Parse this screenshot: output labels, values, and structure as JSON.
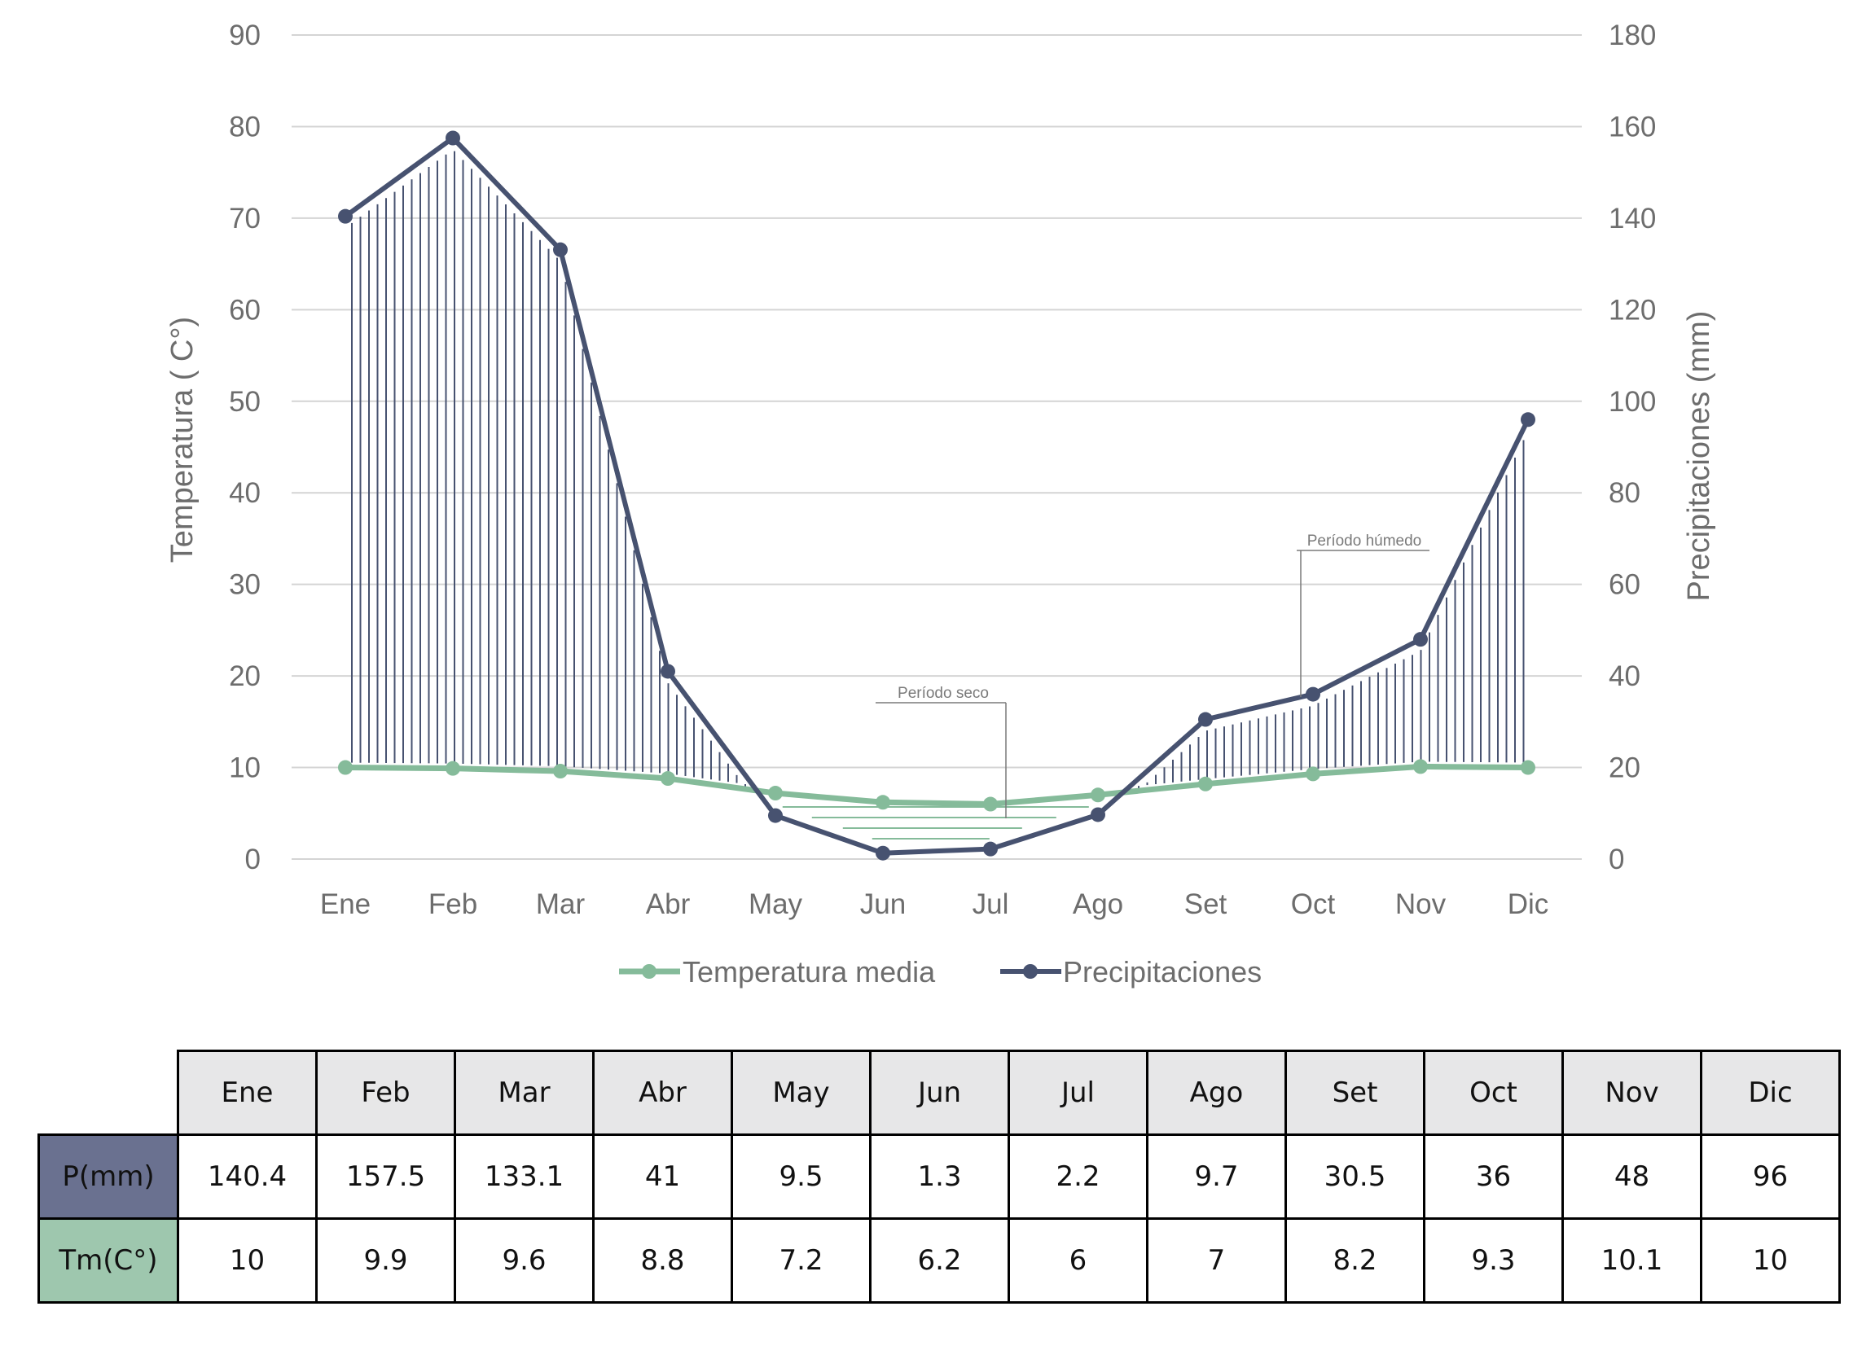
{
  "chart_data": {
    "type": "line",
    "categories": [
      "Ene",
      "Feb",
      "Mar",
      "Abr",
      "May",
      "Jun",
      "Jul",
      "Ago",
      "Set",
      "Oct",
      "Nov",
      "Dic"
    ],
    "ylabel_left": "Temperatura ( C°)",
    "ylabel_right": "Precipitaciones (mm)",
    "ylim_left": [
      0,
      90
    ],
    "ylim_right": [
      0,
      180
    ],
    "yticks_left": [
      0,
      10,
      20,
      30,
      40,
      50,
      60,
      70,
      80,
      90
    ],
    "yticks_right": [
      0,
      20,
      40,
      60,
      80,
      100,
      120,
      140,
      160,
      180
    ],
    "grid": true,
    "legend_position": "bottom",
    "series": [
      {
        "name": "Temperatura media",
        "axis": "left",
        "color": "#85bb9a",
        "values": [
          10,
          9.9,
          9.6,
          8.8,
          7.2,
          6.2,
          6,
          7,
          8.2,
          9.3,
          10.1,
          10
        ]
      },
      {
        "name": "Precipitaciones",
        "axis": "right",
        "color": "#475270",
        "values": [
          140.4,
          157.5,
          133.1,
          41,
          9.5,
          1.3,
          2.2,
          9.7,
          30.5,
          36,
          48,
          96
        ]
      }
    ],
    "annotations": [
      {
        "text": "Período seco",
        "month": "Jul"
      },
      {
        "text": "Período húmedo",
        "month": "Oct"
      }
    ]
  },
  "table": {
    "headers": [
      "Ene",
      "Feb",
      "Mar",
      "Abr",
      "May",
      "Jun",
      "Jul",
      "Ago",
      "Set",
      "Oct",
      "Nov",
      "Dic"
    ],
    "rows": [
      {
        "label": "P(mm)",
        "values": [
          "140.4",
          "157.5",
          "133.1",
          "41",
          "9.5",
          "1.3",
          "2.2",
          "9.7",
          "30.5",
          "36",
          "48",
          "96"
        ]
      },
      {
        "label": "Tm(C°)",
        "values": [
          "10",
          "9.9",
          "9.6",
          "8.8",
          "7.2",
          "6.2",
          "6",
          "7",
          "8.2",
          "9.3",
          "10.1",
          "10"
        ]
      }
    ]
  }
}
